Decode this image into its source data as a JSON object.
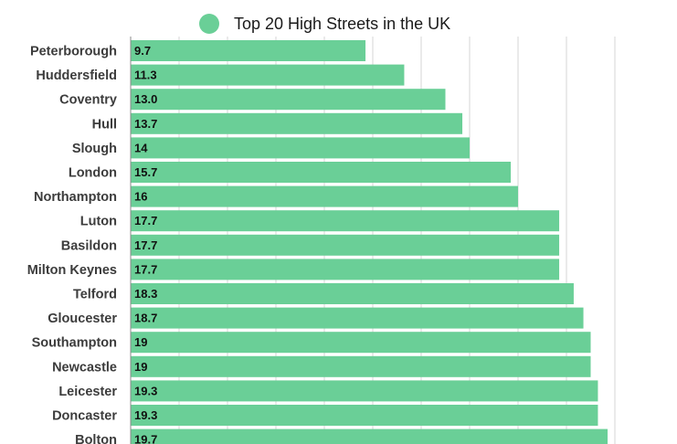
{
  "chart_data": {
    "type": "bar",
    "orientation": "horizontal",
    "title": "",
    "legend": {
      "position": "top",
      "entries": [
        "Top 20 High Streets in the UK"
      ]
    },
    "series": [
      {
        "name": "Top 20 High Streets in the UK",
        "color": "#6acf97",
        "values": [
          9.7,
          11.3,
          13.0,
          13.7,
          14,
          15.7,
          16,
          17.7,
          17.7,
          17.7,
          18.3,
          18.7,
          19,
          19,
          19.3,
          19.3,
          19.7
        ]
      }
    ],
    "categories": [
      "Peterborough",
      "Huddersfield",
      "Coventry",
      "Hull",
      "Slough",
      "London",
      "Northampton",
      "Luton",
      "Basildon",
      "Milton Keynes",
      "Telford",
      "Gloucester",
      "Southampton",
      "Newcastle",
      "Leicester",
      "Doncaster",
      "Bolton"
    ],
    "value_labels": [
      "9.7",
      "11.3",
      "13.0",
      "13.7",
      "14",
      "15.7",
      "16",
      "17.7",
      "17.7",
      "17.7",
      "18.3",
      "18.7",
      "19",
      "19",
      "19.3",
      "19.3",
      "19.7"
    ],
    "xlim": [
      0,
      20
    ],
    "grid": true,
    "colors": {
      "bar": "#6acf97",
      "grid": "#d6d6d6",
      "axis": "#8a8a8a"
    }
  }
}
